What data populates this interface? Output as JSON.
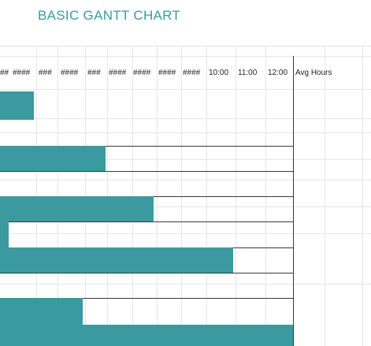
{
  "sheet": {
    "title": "BASIC GANTT CHART"
  },
  "header": {
    "columns": [
      "##",
      "####",
      "###",
      "####",
      "###",
      "####",
      "####",
      "####",
      "####",
      "10:00",
      "11:00",
      "12:00"
    ],
    "avg_hours": "Avg Hours"
  },
  "colors": {
    "bar": "#3b9aa0",
    "title": "#3b9aa0"
  },
  "bars": [
    {
      "task_row": 1,
      "hours": 1.2
    },
    {
      "task_row": 2,
      "hours": 3.7
    },
    {
      "task_row": 3,
      "hours": 5.4
    },
    {
      "task_row": 4,
      "hours": 0.3
    },
    {
      "task_row": 5,
      "hours": 8.2
    },
    {
      "task_row": 6,
      "hours": 2.9
    },
    {
      "task_row": 7,
      "hours": 10.3
    }
  ]
}
